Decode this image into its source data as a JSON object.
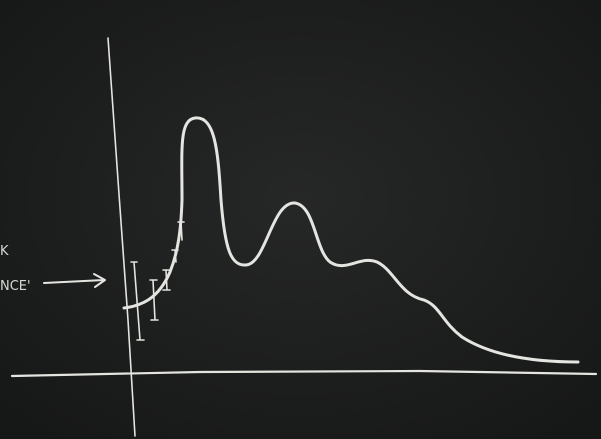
{
  "labels": [
    "K",
    "NCE'"
  ]
}
